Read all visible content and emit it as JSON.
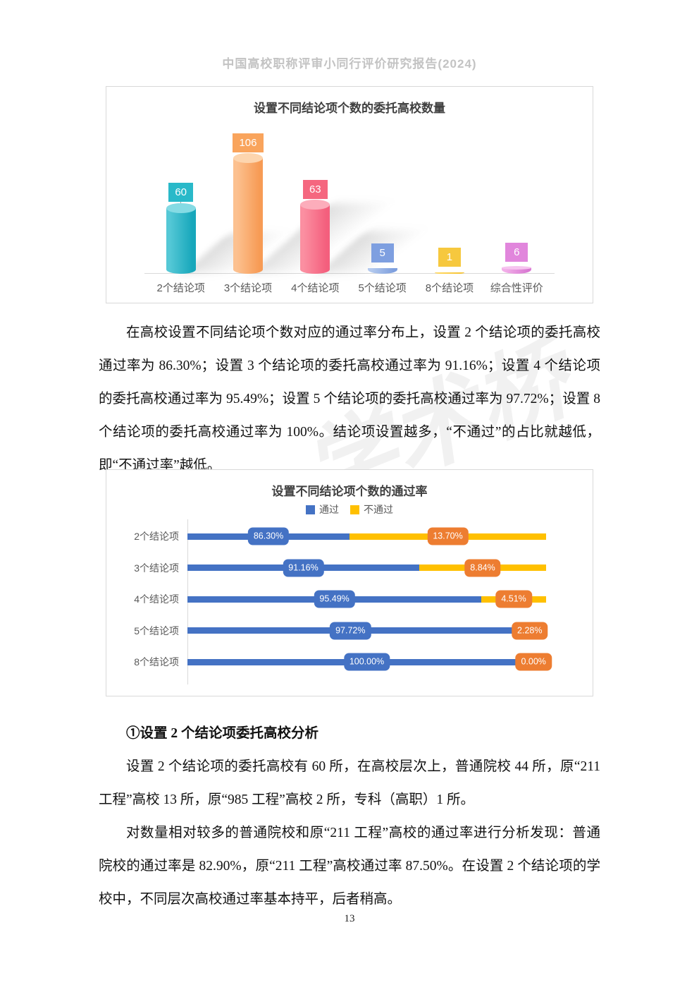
{
  "page": {
    "header_title": "中国高校职称评审小同行评价研究报告(2024)",
    "page_number": "13",
    "watermark_text": "学术桥"
  },
  "paragraphs": {
    "p1": "在高校设置不同结论项个数对应的通过率分布上，设置 2 个结论项的委托高校通过率为 86.30%；设置 3 个结论项的委托高校通过率为 91.16%；设置 4 个结论项的委托高校通过率为 95.49%；设置 5 个结论项的委托高校通过率为 97.72%；设置 8 个结论项的委托高校通过率为 100%。结论项设置越多，“不通过”的占比就越低，即“不通过率”越低。",
    "section_heading": "①设置 2 个结论项委托高校分析",
    "p2": "设置 2 个结论项的委托高校有 60 所，在高校层次上，普通院校 44 所，原“211 工程”高校 13 所，原“985 工程”高校 2 所，专科（高职）1 所。",
    "p3": "对数量相对较多的普通院校和原“211 工程”高校的通过率进行分析发现：普通院校的通过率是 82.90%，原“211 工程”高校通过率 87.50%。在设置 2 个结论项的学校中，不同层次高校通过率基本持平，后者稍高。"
  },
  "chart_data": [
    {
      "type": "bar",
      "style": "3d-cylinder",
      "title": "设置不同结论项个数的委托高校数量",
      "categories": [
        "2个结论项",
        "3个结论项",
        "4个结论项",
        "5个结论项",
        "8个结论项",
        "综合性评价"
      ],
      "values": [
        60,
        106,
        63,
        5,
        1,
        6
      ],
      "ylim": [
        0,
        110
      ],
      "grid": false,
      "legend_position": "none",
      "palette": [
        {
          "light": "#55c8d6",
          "dark": "#17a7bb",
          "top": "#85dbe4",
          "badge": "#29b9c9"
        },
        {
          "light": "#fcc190",
          "dark": "#f79b55",
          "top": "#fdd5ae",
          "badge": "#f9a45c"
        },
        {
          "light": "#fb8fa1",
          "dark": "#f45f7d",
          "top": "#fcadbb",
          "badge": "#f5677f"
        },
        {
          "light": "#b3c9ee",
          "dark": "#7e9fde",
          "top": "#c5d6f2",
          "badge": "#7e9fe0"
        },
        {
          "light": "#ffd75e",
          "dark": "#f6c333",
          "top": "#ffe48c",
          "badge": "#f6c83e"
        },
        {
          "light": "#f2aee8",
          "dark": "#d979d3",
          "top": "#f6c4ef",
          "badge": "#e186dc"
        }
      ]
    },
    {
      "type": "bar",
      "orientation": "horizontal",
      "title": "设置不同结论项个数的通过率",
      "categories": [
        "2个结论项",
        "3个结论项",
        "4个结论项",
        "5个结论项",
        "8个结论项"
      ],
      "series": [
        {
          "name": "通过",
          "values": [
            86.3,
            91.16,
            95.49,
            97.72,
            100.0
          ],
          "labels": [
            "86.30%",
            "91.16%",
            "95.49%",
            "97.72%",
            "100.00%"
          ],
          "color": "#4472c4"
        },
        {
          "name": "不通过",
          "values": [
            13.7,
            8.84,
            4.51,
            2.28,
            0.0
          ],
          "labels": [
            "13.70%",
            "8.84%",
            "4.51%",
            "2.28%",
            "0.00%"
          ],
          "color": "#ffc000",
          "badge_color": "#ed7d31"
        }
      ],
      "x_axis": {
        "min": 75,
        "max": 100
      },
      "grid": false,
      "legend_position": "top"
    }
  ]
}
